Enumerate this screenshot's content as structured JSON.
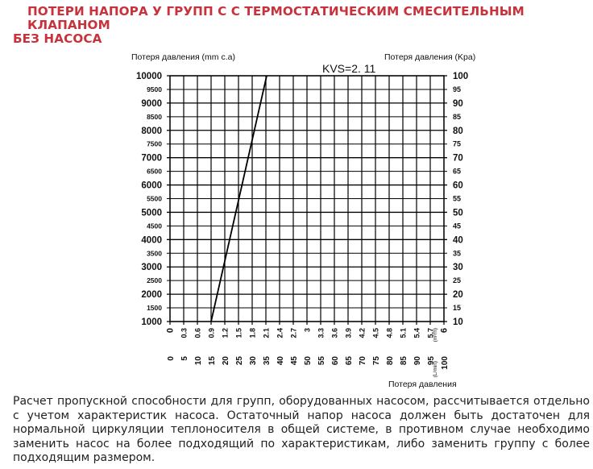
{
  "title": {
    "line1": "ПОТЕРИ НАПОРА У ГРУПП С С ТЕРМОСТАТИЧЕСКИМ СМЕСИТЕЛЬНЫМ КЛАПАНОМ",
    "line2": "БЕЗ НАСОСА",
    "color": "#c8323c"
  },
  "chart_data": {
    "type": "line",
    "annotation": "KVS=2. 11",
    "y_left": {
      "label": "Потеря давления (mm c.a)",
      "range": [
        1000,
        10000
      ],
      "ticks": [
        "1000",
        "1500",
        "2000",
        "2500",
        "3000",
        "3500",
        "4000",
        "4500",
        "5000",
        "5500",
        "6000",
        "6500",
        "7000",
        "7500",
        "8000",
        "8500",
        "9000",
        "9500",
        "10000"
      ]
    },
    "y_right": {
      "label": "Потеря давления (Kpa)",
      "range": [
        10,
        100
      ],
      "ticks": [
        "10",
        "15",
        "20",
        "25",
        "30",
        "35",
        "40",
        "45",
        "50",
        "55",
        "60",
        "65",
        "70",
        "75",
        "80",
        "85",
        "90",
        "95",
        "100"
      ]
    },
    "x_top": {
      "unit": "(m³/h)",
      "range": [
        0,
        6
      ],
      "ticks": [
        "0",
        "0.3",
        "0.6",
        "0.9",
        "1.2",
        "1.5",
        "1.8",
        "2.1",
        "2.4",
        "2.7",
        "3",
        "3.3",
        "3.6",
        "3.9",
        "4.2",
        "4.5",
        "4.8",
        "5.1",
        "5.4",
        "5.7",
        "6"
      ]
    },
    "x_bottom": {
      "unit": "(L/min)",
      "range": [
        0,
        100
      ],
      "ticks": [
        "0",
        "5",
        "10",
        "15",
        "20",
        "25",
        "30",
        "35",
        "40",
        "45",
        "50",
        "55",
        "60",
        "65",
        "70",
        "75",
        "80",
        "85",
        "90",
        "95",
        "100"
      ]
    },
    "xlabel": "Потеря давления",
    "grid": true,
    "series": [
      {
        "x_lmin": [
          15,
          35.3
        ],
        "y_mmca": [
          1000,
          10000
        ]
      }
    ]
  },
  "description": "Расчет пропускной способности для групп, оборудованных насосом, рассчитывается отдельно с учетом характеристик насоса. Остаточный напор насоса должен быть достаточен для нормальной циркуляции теплоносителя в общей системе, в противном случае необходимо заменить насос на более подходящий по характеристикам, либо заменить группу с более подходящим размером."
}
